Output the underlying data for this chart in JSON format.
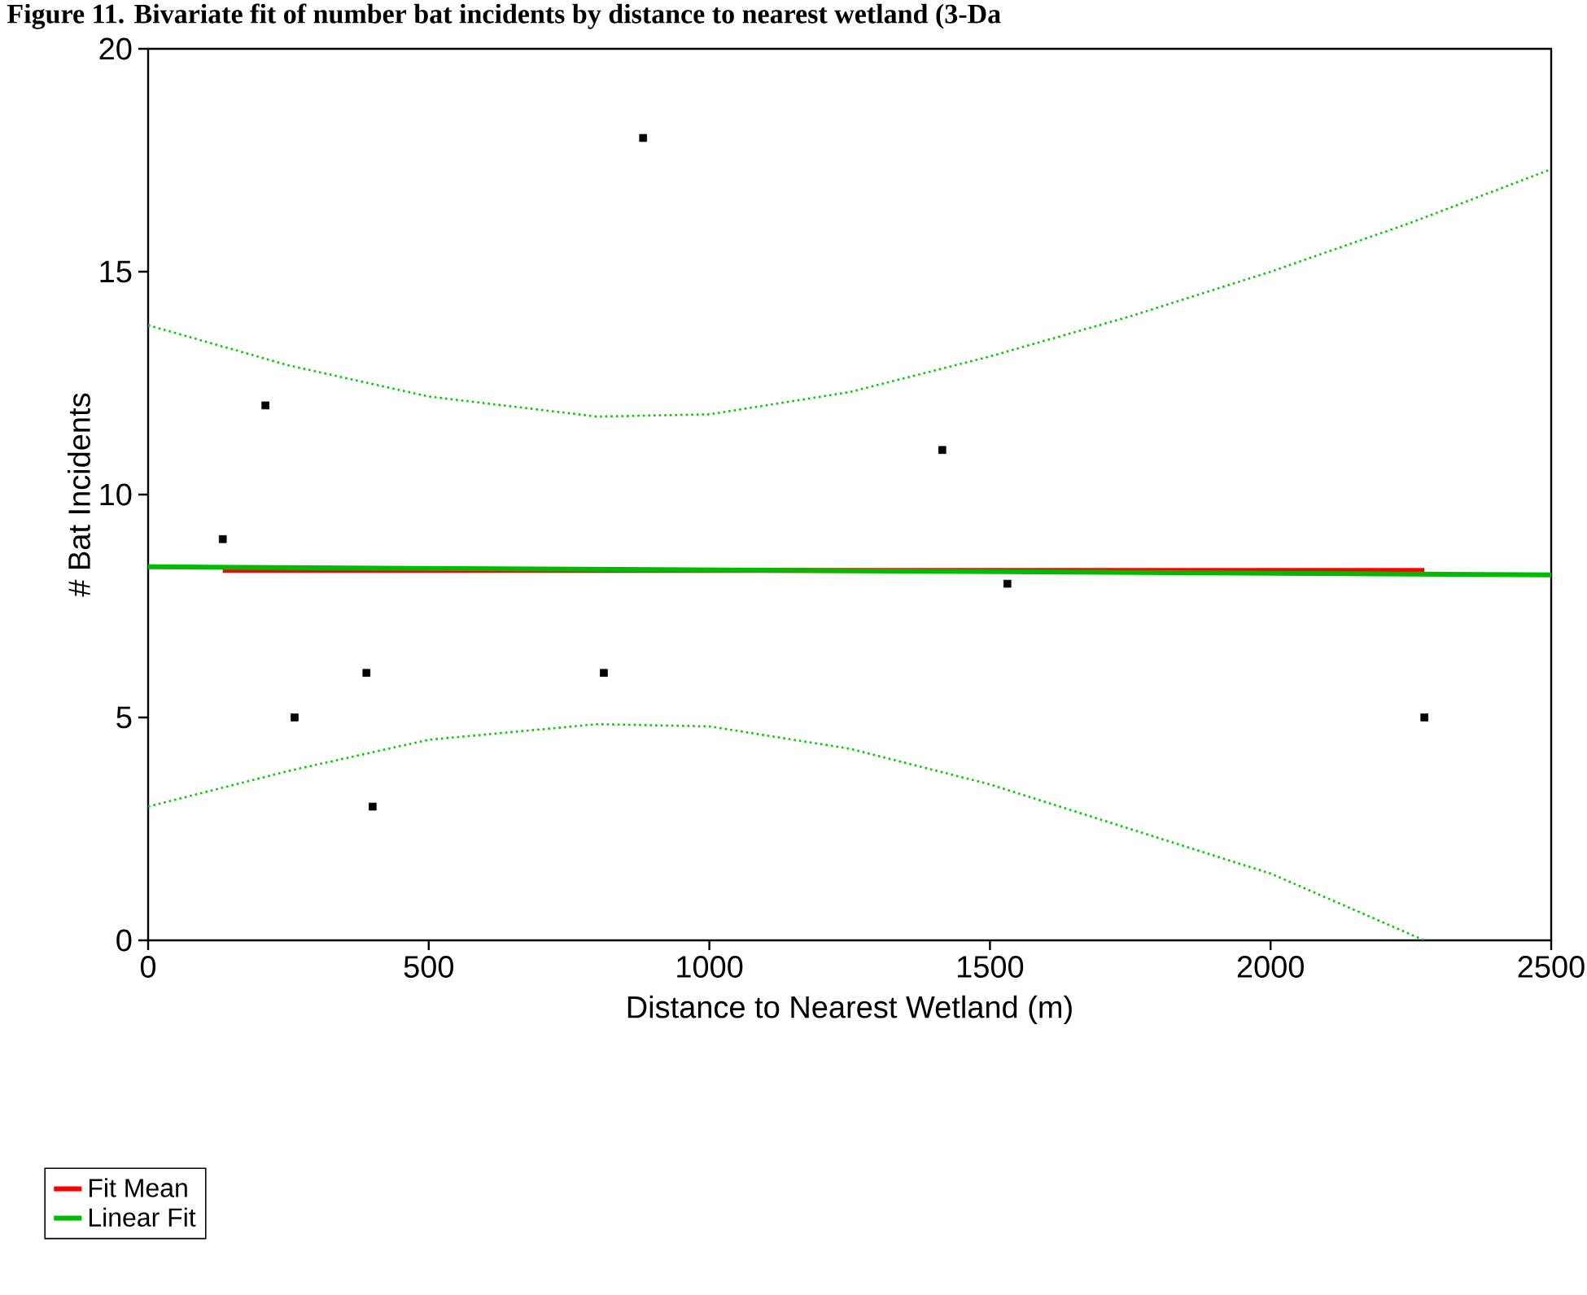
{
  "chart_data": {
    "type": "scatter",
    "title": "Figure 11. Bivariate fit of number bat incidents by distance to nearest wetland (3-Da",
    "xlabel": "Distance to Nearest Wetland (m)",
    "ylabel": "# Bat Incidents",
    "xlim": [
      0,
      2500
    ],
    "ylim": [
      0,
      20
    ],
    "xticks": [
      0,
      500,
      1000,
      1500,
      2000,
      2500
    ],
    "yticks": [
      0,
      5,
      10,
      15,
      20
    ],
    "legend": "bottom left",
    "grid": false,
    "series": [
      {
        "marker": "square",
        "color": "#000000",
        "x": [
          133,
          209,
          261,
          389,
          400,
          812,
          882,
          1415,
          1531,
          2274
        ],
        "values": [
          9,
          12,
          5,
          6,
          3,
          6,
          18,
          11,
          8,
          5
        ]
      },
      {
        "type": "line",
        "name": "Fit Mean",
        "color": "#ff0000",
        "marker": "none",
        "line_style": "solid",
        "x": [
          133,
          2274
        ],
        "values": [
          8.3,
          8.3
        ]
      },
      {
        "type": "line",
        "name": "Linear Fit",
        "color": "#00bb00",
        "marker": "none",
        "line_style": "solid",
        "x": [
          0,
          2500
        ],
        "values": [
          8.38,
          8.2
        ]
      },
      {
        "type": "line",
        "color": "#00cc00",
        "marker": "none",
        "line_style": "dotted",
        "x": [
          0,
          250,
          500,
          800,
          1000,
          1250,
          1500,
          1750,
          2000,
          2250,
          2500
        ],
        "values": [
          13.8,
          12.9,
          12.2,
          11.75,
          11.8,
          12.3,
          13.1,
          14.0,
          15.0,
          16.1,
          17.3
        ]
      },
      {
        "type": "line",
        "color": "#00cc00",
        "marker": "none",
        "line_style": "dotted",
        "x": [
          0,
          250,
          500,
          800,
          1000,
          1250,
          1500,
          1750,
          2000,
          2274
        ],
        "values": [
          3.0,
          3.8,
          4.5,
          4.85,
          4.8,
          4.3,
          3.5,
          2.5,
          1.5,
          0
        ]
      }
    ]
  }
}
